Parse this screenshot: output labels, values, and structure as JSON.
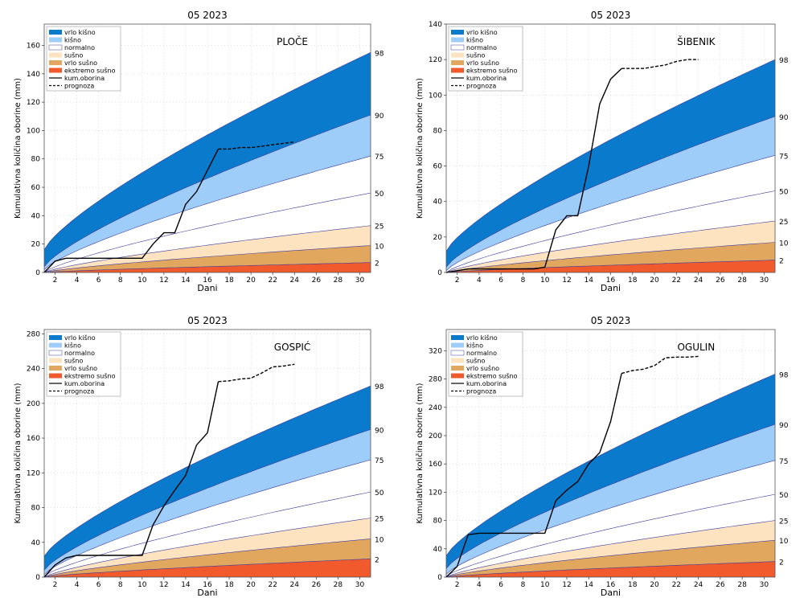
{
  "colors": {
    "vrlo_kisno": "#0a7bcc",
    "kisno": "#9fcdfa",
    "normalno": "#ffffff",
    "susno": "#fde3bf",
    "vrlo_susno": "#e2a75f",
    "ekstremno_susno": "#f05a2c",
    "percentile_line": "#3a3aa0",
    "observed": "#000000",
    "grid": "#cccccc"
  },
  "legend_labels": {
    "vrlo_kisno": "vrlo kišno",
    "kisno": "kišno",
    "normalno": "normalno",
    "susno": "sušno",
    "vrlo_susno": "vrlo sušno",
    "ekstremno_susno": "ekstremo sušno",
    "kum_oborina": "kum.oborina",
    "prognoza": "prognoza"
  },
  "chart_data": [
    {
      "type": "area",
      "title": "05 2023",
      "station": "PLOČE",
      "xlabel": "Dani",
      "ylabel": "Kumulativna količina oborine (mm)",
      "xlim": [
        1,
        31
      ],
      "ylim": [
        0,
        175
      ],
      "x_ticks": [
        2,
        4,
        6,
        8,
        10,
        12,
        14,
        16,
        18,
        20,
        22,
        24,
        26,
        28,
        30
      ],
      "y_ticks": [
        0,
        20,
        40,
        60,
        80,
        100,
        120,
        140,
        160
      ],
      "percentiles": [
        2,
        10,
        25,
        50,
        75,
        90,
        98
      ],
      "percentile_end_values": [
        7,
        19,
        33,
        56,
        82,
        111,
        155
      ],
      "percentile_start_values": [
        0,
        0,
        0,
        0,
        2,
        4,
        16
      ],
      "observed": {
        "x": [
          1,
          2,
          3,
          4,
          5,
          6,
          7,
          8,
          9,
          10,
          11,
          12,
          13,
          14,
          15,
          16,
          17
        ],
        "y": [
          0,
          8,
          10,
          10,
          10,
          10,
          10,
          10,
          10,
          10,
          20,
          28,
          28,
          48,
          57,
          72,
          87
        ]
      },
      "forecast": {
        "x": [
          17,
          18,
          19,
          20,
          21,
          22,
          23,
          24
        ],
        "y": [
          87,
          87,
          88,
          88,
          89,
          90,
          91,
          92
        ]
      },
      "scaled": {
        "observed_y": [
          0,
          8,
          10,
          10,
          10,
          10,
          10,
          10,
          10,
          10,
          20,
          28,
          28,
          48,
          57,
          72,
          87
        ]
      }
    },
    {
      "type": "area",
      "title": "05 2023",
      "station": "ŠIBENIK",
      "xlabel": "Dani",
      "ylabel": "Kumulativna količina oborine (mm)",
      "xlim": [
        1,
        31
      ],
      "ylim": [
        0,
        140
      ],
      "x_ticks": [
        2,
        4,
        6,
        8,
        10,
        12,
        14,
        16,
        18,
        20,
        22,
        24,
        26,
        28,
        30
      ],
      "y_ticks": [
        0,
        20,
        40,
        60,
        80,
        100,
        120,
        140
      ],
      "percentiles": [
        2,
        10,
        25,
        50,
        75,
        90,
        98
      ],
      "percentile_end_values": [
        7,
        17,
        29,
        46,
        66,
        88,
        120
      ],
      "percentile_start_values": [
        0,
        0,
        0,
        0,
        1,
        3,
        12
      ],
      "observed": {
        "x": [
          1,
          2,
          3,
          4,
          5,
          6,
          7,
          8,
          9,
          10,
          11,
          12,
          13,
          14,
          15,
          16,
          17
        ],
        "y": [
          0,
          1,
          2,
          2,
          2,
          2,
          2,
          2,
          2,
          3,
          24,
          32,
          32,
          60,
          95,
          109,
          115
        ]
      },
      "forecast": {
        "x": [
          17,
          18,
          19,
          20,
          21,
          22,
          23,
          24
        ],
        "y": [
          115,
          115,
          115,
          116,
          117,
          119,
          120,
          120
        ]
      }
    },
    {
      "type": "area",
      "title": "05 2023",
      "station": "GOSPIĆ",
      "xlabel": "Dani",
      "ylabel": "Kumulativna količina oborine (mm)",
      "xlim": [
        1,
        31
      ],
      "ylim": [
        0,
        285
      ],
      "x_ticks": [
        2,
        4,
        6,
        8,
        10,
        12,
        14,
        16,
        18,
        20,
        22,
        24,
        26,
        28,
        30
      ],
      "y_ticks": [
        0,
        40,
        80,
        120,
        160,
        200,
        240,
        280
      ],
      "percentiles": [
        2,
        10,
        25,
        50,
        75,
        90,
        98
      ],
      "percentile_end_values": [
        21,
        44,
        68,
        98,
        135,
        170,
        220
      ],
      "percentile_start_values": [
        0,
        0,
        0,
        1,
        3,
        8,
        24
      ],
      "observed": {
        "x": [
          1,
          2,
          3,
          4,
          5,
          6,
          7,
          8,
          9,
          10,
          11,
          12,
          13,
          14,
          15,
          16,
          17
        ],
        "y": [
          0,
          14,
          22,
          25,
          25,
          25,
          25,
          25,
          25,
          25,
          60,
          82,
          100,
          117,
          152,
          166,
          225
        ]
      },
      "forecast": {
        "x": [
          17,
          18,
          19,
          20,
          21,
          22,
          23,
          24
        ],
        "y": [
          225,
          226,
          228,
          229,
          235,
          242,
          243,
          245
        ]
      }
    },
    {
      "type": "area",
      "title": "05 2023",
      "station": "OGULIN",
      "xlabel": "Dani",
      "ylabel": "Kumulativna količina oborine (mm)",
      "xlim": [
        1,
        31
      ],
      "ylim": [
        0,
        350
      ],
      "x_ticks": [
        2,
        4,
        6,
        8,
        10,
        12,
        14,
        16,
        18,
        20,
        22,
        24,
        26,
        28,
        30
      ],
      "y_ticks": [
        0,
        40,
        80,
        120,
        160,
        200,
        240,
        280,
        320
      ],
      "percentiles": [
        2,
        10,
        25,
        50,
        75,
        90,
        98
      ],
      "percentile_end_values": [
        22,
        52,
        80,
        117,
        165,
        216,
        287
      ],
      "percentile_start_values": [
        0,
        0,
        0,
        1,
        4,
        12,
        30
      ],
      "observed": {
        "x": [
          1,
          2,
          3,
          4,
          5,
          6,
          7,
          8,
          9,
          10,
          11,
          12,
          13,
          14,
          15,
          16,
          17
        ],
        "y": [
          0,
          15,
          60,
          62,
          62,
          62,
          62,
          62,
          62,
          62,
          108,
          123,
          135,
          160,
          176,
          220,
          288
        ]
      },
      "forecast": {
        "x": [
          17,
          18,
          19,
          20,
          21,
          22,
          23,
          24
        ],
        "y": [
          288,
          292,
          294,
          299,
          310,
          311,
          311,
          312
        ]
      }
    }
  ]
}
